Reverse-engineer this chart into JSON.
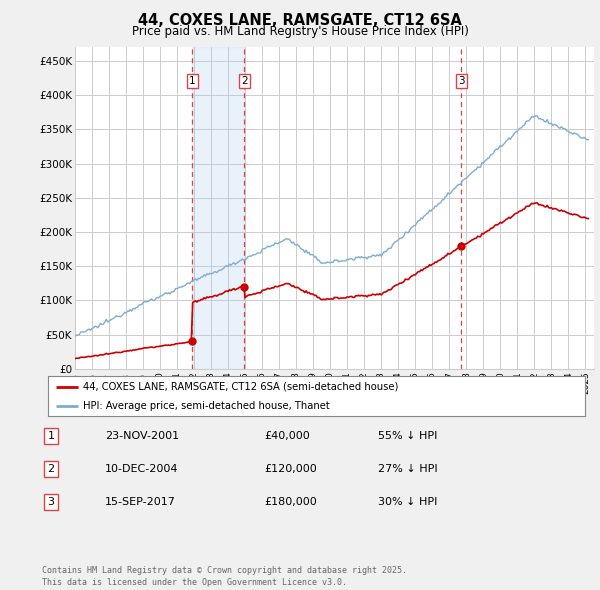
{
  "title": "44, COXES LANE, RAMSGATE, CT12 6SA",
  "subtitle": "Price paid vs. HM Land Registry's House Price Index (HPI)",
  "ylabel_ticks": [
    "£0",
    "£50K",
    "£100K",
    "£150K",
    "£200K",
    "£250K",
    "£300K",
    "£350K",
    "£400K",
    "£450K"
  ],
  "ytick_values": [
    0,
    50000,
    100000,
    150000,
    200000,
    250000,
    300000,
    350000,
    400000,
    450000
  ],
  "ylim": [
    0,
    470000
  ],
  "xlim_start": 1995.0,
  "xlim_end": 2025.5,
  "sale_color": "#cc0000",
  "hpi_color": "#7dadd4",
  "shade_color": "#ddeeff",
  "sale_label": "44, COXES LANE, RAMSGATE, CT12 6SA (semi-detached house)",
  "hpi_label": "HPI: Average price, semi-detached house, Thanet",
  "sales": [
    {
      "num": 1,
      "date_num": 2001.9,
      "price": 40000,
      "label": "1",
      "date_str": "23-NOV-2001",
      "price_str": "£40,000",
      "pct": "55% ↓ HPI"
    },
    {
      "num": 2,
      "date_num": 2004.95,
      "price": 120000,
      "label": "2",
      "date_str": "10-DEC-2004",
      "price_str": "£120,000",
      "pct": "27% ↓ HPI"
    },
    {
      "num": 3,
      "date_num": 2017.71,
      "price": 180000,
      "label": "3",
      "date_str": "15-SEP-2017",
      "price_str": "£180,000",
      "pct": "30% ↓ HPI"
    }
  ],
  "footer": "Contains HM Land Registry data © Crown copyright and database right 2025.\nThis data is licensed under the Open Government Licence v3.0.",
  "bg_color": "#f0f0f0",
  "plot_bg_color": "#ffffff",
  "grid_color": "#cccccc",
  "vline_color": "#dd4444"
}
